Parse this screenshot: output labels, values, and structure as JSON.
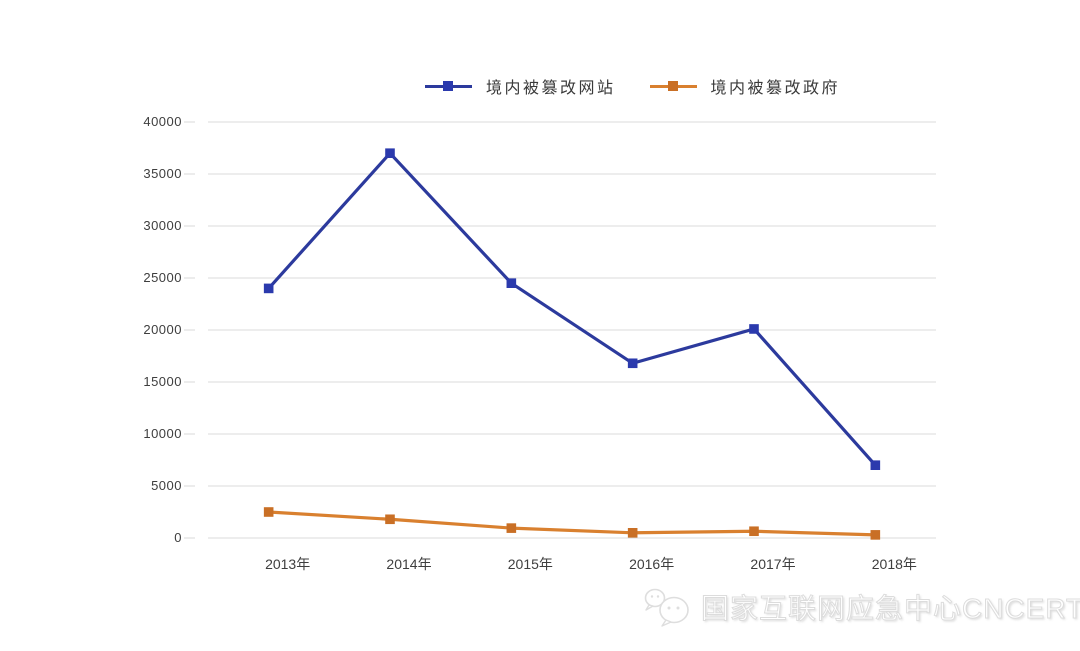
{
  "chart_data": {
    "type": "line",
    "title": "",
    "xlabel": "",
    "ylabel": "",
    "categories": [
      "2013年",
      "2014年",
      "2015年",
      "2016年",
      "2017年",
      "2018年"
    ],
    "series": [
      {
        "id": "tampered-websites",
        "name": "境内被篡改网站",
        "color": "#2C3A9D",
        "marker_color": "#2B3AAD",
        "values": [
          24000,
          37000,
          24500,
          16800,
          20100,
          7000
        ]
      },
      {
        "id": "tampered-government",
        "name": "境内被篡改政府",
        "color": "#D9802F",
        "marker_color": "#C96F25",
        "values": [
          2500,
          1800,
          950,
          500,
          650,
          300
        ]
      }
    ],
    "ylim": [
      0,
      40000
    ],
    "yticks": [
      0,
      5000,
      10000,
      15000,
      20000,
      25000,
      30000,
      35000,
      40000
    ],
    "grid": "horizontal",
    "legend_position": "top-center"
  },
  "watermark": {
    "text": "国家互联网应急中心CNCERT",
    "icon": "wechat-logo"
  },
  "colors": {
    "background": "#FFFFFF",
    "gridline": "#DBDBDB",
    "axis_tick_mark": "#D8D8D8",
    "axis_text": "#3E3E3E",
    "legend_text": "#3A3A3A",
    "watermark_stroke": "#DCDCDC"
  }
}
